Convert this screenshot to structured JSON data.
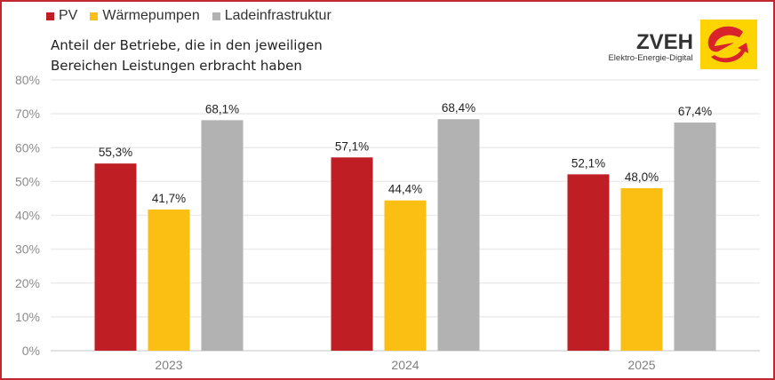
{
  "subtitle": [
    "Anteil der Betriebe, die in den jeweiligen",
    "Bereichen Leistungen erbracht haben"
  ],
  "logo": {
    "name": "ZVEH",
    "tagline": "Elektro-Energie-Digital",
    "color": "#fdd400",
    "accent": "#d9232a"
  },
  "chart_data": {
    "type": "bar",
    "categories": [
      "2023",
      "2024",
      "2025"
    ],
    "series": [
      {
        "name": "PV",
        "color": "#be1e24",
        "values": [
          55.3,
          57.1,
          52.1
        ],
        "labels": [
          "55,3%",
          "57,1%",
          "52,1%"
        ]
      },
      {
        "name": "Wärmepumpen",
        "color": "#fbbf14",
        "values": [
          41.7,
          44.4,
          48.0
        ],
        "labels": [
          "41,7%",
          "44,4%",
          "48,0%"
        ]
      },
      {
        "name": "Ladeinfrastruktur",
        "color": "#b2b2b2",
        "values": [
          68.1,
          68.4,
          67.4
        ],
        "labels": [
          "68,1%",
          "68,4%",
          "67,4%"
        ]
      }
    ],
    "ylim": [
      0,
      80
    ],
    "yticks": [
      "0%",
      "10%",
      "20%",
      "30%",
      "40%",
      "50%",
      "60%",
      "70%",
      "80%"
    ],
    "grid": true,
    "legend": "top-left"
  }
}
